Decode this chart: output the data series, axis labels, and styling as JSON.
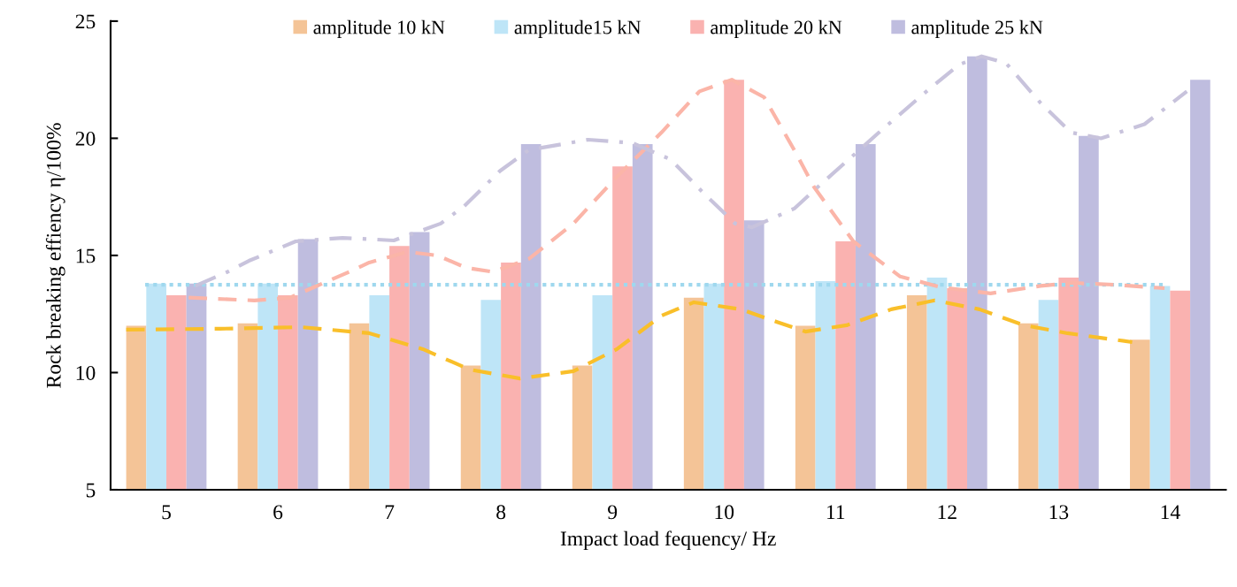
{
  "chart_data": {
    "type": "bar",
    "xlabel": "Impact load fequency/ Hz",
    "ylabel": "Rock breaking effiency η/100%",
    "x": [
      5,
      6,
      7,
      8,
      9,
      10,
      11,
      12,
      13,
      14
    ],
    "xlim": [
      4.5,
      14.5
    ],
    "xticks": [
      5,
      6,
      7,
      8,
      9,
      10,
      11,
      12,
      13,
      14
    ],
    "ylim": [
      5,
      25
    ],
    "yticks": [
      5,
      10,
      15,
      20,
      25
    ],
    "grid": false,
    "legend": "top",
    "series": [
      {
        "name": "amplitude 10 kN",
        "color": "#f4c497",
        "values": [
          12.0,
          12.1,
          12.1,
          10.3,
          10.3,
          13.2,
          12.0,
          13.3,
          12.1,
          11.4
        ]
      },
      {
        "name": "amplitude15 kN",
        "color": "#bee5f7",
        "values": [
          13.8,
          13.8,
          13.3,
          13.1,
          13.3,
          13.8,
          13.9,
          14.05,
          13.1,
          13.7
        ]
      },
      {
        "name": "amplitude 20 kN",
        "color": "#fab2b0",
        "values": [
          13.3,
          13.3,
          15.4,
          14.7,
          18.8,
          22.5,
          15.6,
          13.6,
          14.05,
          13.5
        ]
      },
      {
        "name": "amplitude 25 kN",
        "color": "#bfbddf",
        "values": [
          13.8,
          15.7,
          16.0,
          19.75,
          19.75,
          16.5,
          19.75,
          23.5,
          20.1,
          22.5
        ]
      },
      {
        "type": "line",
        "color": "#f9bf2a",
        "line_style": "dashed",
        "x": [
          4.64,
          5.48,
          6.21,
          6.82,
          7.3,
          7.72,
          8.17,
          8.65,
          9.04,
          9.44,
          9.73,
          10.15,
          10.47,
          10.73,
          11.1,
          11.5,
          11.89,
          12.29,
          12.69,
          13.08,
          13.66
        ],
        "values": [
          11.83,
          11.87,
          11.94,
          11.68,
          11.0,
          10.13,
          9.75,
          10.06,
          11.0,
          12.43,
          13.0,
          12.7,
          12.17,
          11.75,
          12.02,
          12.7,
          13.08,
          12.7,
          12.02,
          11.68,
          11.3
        ]
      },
      {
        "type": "line",
        "color": "#9fd8ee",
        "line_style": "dotted",
        "x": [
          4.81,
          13.95
        ],
        "values": [
          13.75,
          13.75
        ]
      },
      {
        "type": "line",
        "color": "#fbb5a8",
        "line_style": "dashed",
        "x": [
          5.2,
          5.79,
          6.11,
          6.64,
          6.82,
          7.16,
          7.43,
          7.69,
          7.93,
          8.25,
          8.65,
          9.04,
          9.44,
          9.78,
          10.07,
          10.36,
          10.63,
          10.81,
          11.16,
          11.58,
          11.95,
          12.39,
          12.84,
          13.11,
          13.5,
          13.95
        ],
        "values": [
          13.2,
          13.08,
          13.2,
          14.3,
          14.7,
          15.15,
          15.0,
          14.47,
          14.3,
          14.85,
          16.36,
          18.36,
          20.25,
          22.0,
          22.5,
          21.75,
          19.5,
          17.9,
          15.6,
          14.1,
          13.64,
          13.38,
          13.7,
          13.83,
          13.75,
          13.6
        ]
      },
      {
        "type": "line",
        "color": "#c8c3dc",
        "line_style": "dashdot",
        "x": [
          5.26,
          5.55,
          5.74,
          6.16,
          6.58,
          7.04,
          7.46,
          7.67,
          7.99,
          8.25,
          8.78,
          9.18,
          9.52,
          9.83,
          10.1,
          10.25,
          10.63,
          10.86,
          11.39,
          11.79,
          12.11,
          12.31,
          12.53,
          12.84,
          13.11,
          13.38,
          13.77,
          14.15
        ],
        "values": [
          13.7,
          14.3,
          14.77,
          15.6,
          15.75,
          15.64,
          16.36,
          17.1,
          18.6,
          19.5,
          19.94,
          19.8,
          19.1,
          17.6,
          16.36,
          16.2,
          17.0,
          18.0,
          20.25,
          21.9,
          23.15,
          23.5,
          23.2,
          21.5,
          20.25,
          20.0,
          20.6,
          22.0
        ]
      }
    ]
  }
}
